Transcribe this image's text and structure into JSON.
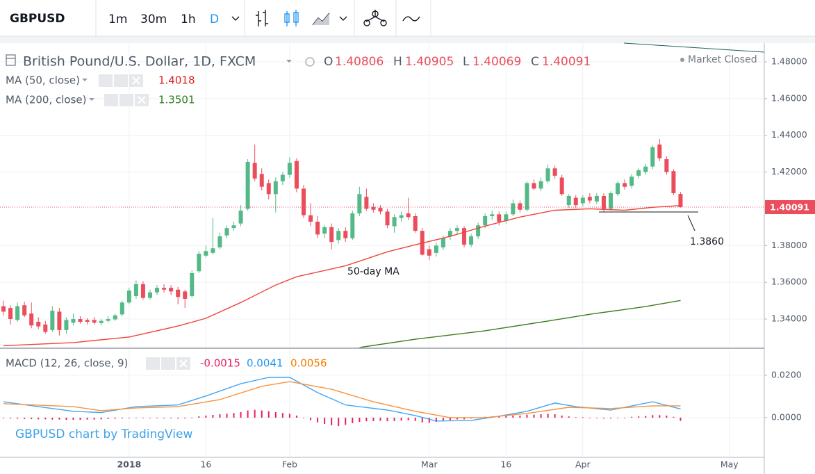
{
  "toolbar": {
    "symbol": "GBPUSD",
    "intervals": [
      "1m",
      "30m",
      "1h",
      "D"
    ]
  },
  "watermark": "GBPUSD chart by TradingView",
  "chart_data": [
    {
      "type": "candlestick",
      "title": "British Pound/U.S. Dollar, 1D, FXCM",
      "ohlc_labels": [
        "O",
        "H",
        "L",
        "C"
      ],
      "status": "Market Closed",
      "up_color": "#53b987",
      "down_color": "#eb4d5c",
      "grid": true,
      "xlim": [
        -0.5,
        109
      ],
      "xticks": [
        {
          "value": 18,
          "label": "2018"
        },
        {
          "value": 29,
          "label": "16"
        },
        {
          "value": 41,
          "label": "Feb"
        },
        {
          "value": 61,
          "label": "Mar"
        },
        {
          "value": 72,
          "label": "16"
        },
        {
          "value": 83,
          "label": "Apr"
        },
        {
          "value": 104,
          "label": "May"
        }
      ],
      "ylim": [
        1.3245,
        1.4902
      ],
      "yticks": [
        {
          "value": 1.34,
          "label": "1.34000"
        },
        {
          "value": 1.36,
          "label": "1.36000"
        },
        {
          "value": 1.38,
          "label": "1.38000"
        },
        {
          "value": 1.42,
          "label": "1.42000"
        },
        {
          "value": 1.44,
          "label": "1.44000"
        },
        {
          "value": 1.46,
          "label": "1.46000"
        },
        {
          "value": 1.48,
          "label": "1.48000"
        }
      ],
      "ohlc": [
        [
          1.347,
          1.35,
          1.342,
          1.344
        ],
        [
          1.346,
          1.3475,
          1.337,
          1.34
        ],
        [
          1.3395,
          1.349,
          1.3385,
          1.347
        ],
        [
          1.3475,
          1.3495,
          1.341,
          1.342
        ],
        [
          1.343,
          1.349,
          1.335,
          1.3365
        ],
        [
          1.3385,
          1.341,
          1.3345,
          1.336
        ],
        [
          1.337,
          1.339,
          1.332,
          1.333
        ],
        [
          1.334,
          1.347,
          1.333,
          1.3445
        ],
        [
          1.344,
          1.346,
          1.331,
          1.334
        ],
        [
          1.334,
          1.341,
          1.332,
          1.3395
        ],
        [
          1.338,
          1.343,
          1.3365,
          1.34
        ],
        [
          1.34,
          1.3415,
          1.3375,
          1.3385
        ],
        [
          1.3395,
          1.3405,
          1.337,
          1.3385
        ],
        [
          1.3395,
          1.341,
          1.337,
          1.338
        ],
        [
          1.3378,
          1.34,
          1.3365,
          1.339
        ],
        [
          1.339,
          1.3415,
          1.338,
          1.34
        ],
        [
          1.3398,
          1.343,
          1.339,
          1.342
        ],
        [
          1.3425,
          1.35,
          1.3415,
          1.349
        ],
        [
          1.349,
          1.357,
          1.348,
          1.3555
        ],
        [
          1.3525,
          1.361,
          1.351,
          1.359
        ],
        [
          1.359,
          1.3605,
          1.3505,
          1.3515
        ],
        [
          1.3515,
          1.356,
          1.3505,
          1.3545
        ],
        [
          1.3545,
          1.3585,
          1.353,
          1.357
        ],
        [
          1.357,
          1.359,
          1.3545,
          1.356
        ],
        [
          1.357,
          1.3585,
          1.353,
          1.355
        ],
        [
          1.356,
          1.3575,
          1.348,
          1.352
        ],
        [
          1.355,
          1.356,
          1.346,
          1.351
        ],
        [
          1.3525,
          1.3665,
          1.3515,
          1.365
        ],
        [
          1.366,
          1.377,
          1.365,
          1.3755
        ],
        [
          1.3745,
          1.38,
          1.3735,
          1.377
        ],
        [
          1.376,
          1.395,
          1.375,
          1.3785
        ],
        [
          1.379,
          1.387,
          1.378,
          1.385
        ],
        [
          1.3855,
          1.391,
          1.384,
          1.3895
        ],
        [
          1.3895,
          1.393,
          1.388,
          1.391
        ],
        [
          1.392,
          1.402,
          1.3905,
          1.399
        ],
        [
          1.4,
          1.427,
          1.399,
          1.4255
        ],
        [
          1.425,
          1.435,
          1.415,
          1.4165
        ],
        [
          1.419,
          1.422,
          1.41,
          1.412
        ],
        [
          1.414,
          1.416,
          1.405,
          1.408
        ],
        [
          1.408,
          1.417,
          1.398,
          1.415
        ],
        [
          1.415,
          1.42,
          1.413,
          1.4185
        ],
        [
          1.4185,
          1.428,
          1.417,
          1.425
        ],
        [
          1.426,
          1.4275,
          1.409,
          1.411
        ],
        [
          1.411,
          1.413,
          1.395,
          1.3965
        ],
        [
          1.3965,
          1.403,
          1.3905,
          1.393
        ],
        [
          1.393,
          1.396,
          1.384,
          1.386
        ],
        [
          1.3865,
          1.391,
          1.384,
          1.39
        ],
        [
          1.39,
          1.392,
          1.378,
          1.382
        ],
        [
          1.383,
          1.3895,
          1.381,
          1.388
        ],
        [
          1.388,
          1.39,
          1.382,
          1.384
        ],
        [
          1.384,
          1.399,
          1.383,
          1.3975
        ],
        [
          1.3975,
          1.412,
          1.396,
          1.408
        ],
        [
          1.4065,
          1.411,
          1.399,
          1.4
        ],
        [
          1.401,
          1.403,
          1.398,
          1.3995
        ],
        [
          1.4005,
          1.402,
          1.397,
          1.3985
        ],
        [
          1.3985,
          1.4,
          1.3895,
          1.391
        ],
        [
          1.3905,
          1.397,
          1.387,
          1.3955
        ],
        [
          1.395,
          1.3985,
          1.393,
          1.3965
        ],
        [
          1.3975,
          1.406,
          1.394,
          1.3955
        ],
        [
          1.396,
          1.3975,
          1.387,
          1.388
        ],
        [
          1.388,
          1.3895,
          1.3745,
          1.375
        ],
        [
          1.378,
          1.38,
          1.372,
          1.3745
        ],
        [
          1.376,
          1.3815,
          1.374,
          1.38
        ],
        [
          1.379,
          1.3855,
          1.3775,
          1.384
        ],
        [
          1.385,
          1.3895,
          1.383,
          1.388
        ],
        [
          1.388,
          1.391,
          1.386,
          1.3895
        ],
        [
          1.3895,
          1.3905,
          1.379,
          1.3805
        ],
        [
          1.3805,
          1.3865,
          1.379,
          1.385
        ],
        [
          1.385,
          1.3925,
          1.3835,
          1.391
        ],
        [
          1.391,
          1.3975,
          1.3895,
          1.396
        ],
        [
          1.396,
          1.399,
          1.394,
          1.397
        ],
        [
          1.397,
          1.3985,
          1.391,
          1.393
        ],
        [
          1.3935,
          1.3985,
          1.392,
          1.397
        ],
        [
          1.397,
          1.405,
          1.396,
          1.403
        ],
        [
          1.403,
          1.4045,
          1.398,
          1.3995
        ],
        [
          1.3995,
          1.415,
          1.3985,
          1.414
        ],
        [
          1.414,
          1.416,
          1.41,
          1.411
        ],
        [
          1.411,
          1.417,
          1.4095,
          1.415
        ],
        [
          1.415,
          1.424,
          1.414,
          1.422
        ],
        [
          1.422,
          1.4235,
          1.4165,
          1.418
        ],
        [
          1.417,
          1.4185,
          1.407,
          1.408
        ],
        [
          1.402,
          1.408,
          1.4005,
          1.407
        ],
        [
          1.406,
          1.4075,
          1.4005,
          1.402
        ],
        [
          1.403,
          1.4075,
          1.4015,
          1.406
        ],
        [
          1.4065,
          1.4085,
          1.403,
          1.4045
        ],
        [
          1.404,
          1.4085,
          1.4025,
          1.407
        ],
        [
          1.407,
          1.4085,
          1.3985,
          1.4
        ],
        [
          1.4,
          1.4095,
          1.399,
          1.4085
        ],
        [
          1.408,
          1.415,
          1.407,
          1.414
        ],
        [
          1.414,
          1.416,
          1.4105,
          1.412
        ],
        [
          1.4125,
          1.419,
          1.411,
          1.4175
        ],
        [
          1.418,
          1.422,
          1.4165,
          1.421
        ],
        [
          1.42,
          1.4245,
          1.4185,
          1.423
        ],
        [
          1.423,
          1.4345,
          1.4215,
          1.4335
        ],
        [
          1.435,
          1.438,
          1.426,
          1.4275
        ],
        [
          1.427,
          1.4285,
          1.4185,
          1.42
        ],
        [
          1.4205,
          1.4215,
          1.4075,
          1.4085
        ],
        [
          1.40806,
          1.40905,
          1.40069,
          1.40091
        ]
      ],
      "series": [
        {
          "name": "MA (50, close)",
          "color": "#f0443a",
          "x": [
            0,
            10,
            18,
            25,
            29,
            34,
            39,
            42,
            49,
            55,
            59,
            64,
            69,
            74,
            79,
            84,
            89,
            93,
            97
          ],
          "values": [
            1.3255,
            1.3272,
            1.3302,
            1.3362,
            1.3404,
            1.349,
            1.3585,
            1.363,
            1.369,
            1.3766,
            1.3804,
            1.385,
            1.3906,
            1.3955,
            1.3992,
            1.4,
            1.3992,
            1.4008,
            1.4018
          ]
        },
        {
          "name": "MA (200, close)",
          "color": "#3d7a1d",
          "x": [
            51,
            59,
            69,
            78,
            84,
            92,
            97
          ],
          "values": [
            1.3245,
            1.329,
            1.3336,
            1.3389,
            1.3426,
            1.3468,
            1.3501
          ]
        }
      ],
      "annotations": [
        "50-day MA",
        "1.3860"
      ]
    },
    {
      "type": "macd",
      "title": "MACD (12, 26, close, 9)",
      "grid": true,
      "xlim": [
        -0.5,
        109
      ],
      "ylim": [
        -0.0187,
        0.0321
      ],
      "yticks": [
        {
          "value": 0,
          "label": "0.0000"
        },
        {
          "value": 0.02,
          "label": "0.0200"
        }
      ],
      "histogram": {
        "color": "#e91e63",
        "values": [
          -0.0003,
          -0.0004,
          -0.0005,
          -0.0006,
          -0.0007,
          -0.0008,
          -0.0008,
          -0.0009,
          -0.0009,
          -0.001,
          -0.001,
          -0.001,
          -0.0009,
          -0.0009,
          -0.0008,
          -0.0006,
          -0.0005,
          -0.0004,
          -0.0002,
          -0.0001,
          -0.0001,
          0.0,
          -0.0002,
          -0.0003,
          -0.0003,
          -0.0004,
          -0.0004,
          0.0,
          0.0006,
          0.001,
          0.0013,
          0.0016,
          0.0019,
          0.0022,
          0.0026,
          0.0034,
          0.0037,
          0.0034,
          0.003,
          0.0026,
          0.0022,
          0.0018,
          0.001,
          -0.0002,
          -0.0012,
          -0.0022,
          -0.003,
          -0.0036,
          -0.004,
          -0.0034,
          -0.0026,
          -0.002,
          -0.0017,
          -0.0016,
          -0.0015,
          -0.0017,
          -0.0016,
          -0.0014,
          -0.0012,
          -0.0016,
          -0.0022,
          -0.0024,
          -0.002,
          -0.0016,
          -0.0012,
          -0.0008,
          -0.0008,
          -0.0004,
          0.0,
          0.0004,
          0.0006,
          0.0006,
          0.0008,
          0.001,
          0.001,
          0.0014,
          0.0014,
          0.0016,
          0.0018,
          0.0016,
          0.001,
          0.0006,
          0.0002,
          0.0002,
          0.0,
          -0.0002,
          -0.0004,
          -0.0004,
          -0.0002,
          0.0,
          0.0004,
          0.0006,
          0.0008,
          0.0012,
          0.0012,
          0.001,
          0.0004,
          -0.0015
        ]
      },
      "series": [
        {
          "color": "#42a5f5",
          "x": [
            0,
            5,
            10,
            14,
            19,
            25,
            29,
            34,
            38,
            41,
            45,
            49,
            55,
            59,
            62,
            67,
            71,
            75,
            79,
            82,
            87,
            93,
            97
          ],
          "values": [
            0.0075,
            0.0052,
            0.003,
            0.0024,
            0.0052,
            0.006,
            0.0102,
            0.016,
            0.019,
            0.019,
            0.0118,
            0.006,
            0.0036,
            0.001,
            -0.0016,
            -0.0013,
            0.0007,
            0.003,
            0.0069,
            0.0052,
            0.0036,
            0.0075,
            0.0041
          ]
        },
        {
          "color": "#f7913d",
          "x": [
            0,
            10,
            14,
            19,
            25,
            31,
            37,
            41,
            47,
            53,
            59,
            64,
            69,
            75,
            81,
            87,
            93,
            97
          ],
          "values": [
            0.0066,
            0.0052,
            0.0033,
            0.0046,
            0.0052,
            0.0085,
            0.0148,
            0.017,
            0.0134,
            0.0075,
            0.003,
            0.0,
            0.0,
            0.002,
            0.0049,
            0.0043,
            0.0056,
            0.0056
          ]
        }
      ]
    }
  ]
}
